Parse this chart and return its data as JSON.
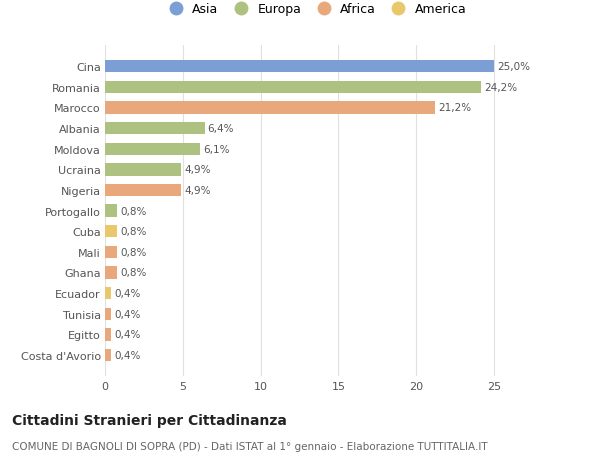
{
  "countries": [
    "Cina",
    "Romania",
    "Marocco",
    "Albania",
    "Moldova",
    "Ucraina",
    "Nigeria",
    "Portogallo",
    "Cuba",
    "Mali",
    "Ghana",
    "Ecuador",
    "Tunisia",
    "Egitto",
    "Costa d'Avorio"
  ],
  "values": [
    25.0,
    24.2,
    21.2,
    6.4,
    6.1,
    4.9,
    4.9,
    0.8,
    0.8,
    0.8,
    0.8,
    0.4,
    0.4,
    0.4,
    0.4
  ],
  "labels": [
    "25,0%",
    "24,2%",
    "21,2%",
    "6,4%",
    "6,1%",
    "4,9%",
    "4,9%",
    "0,8%",
    "0,8%",
    "0,8%",
    "0,8%",
    "0,4%",
    "0,4%",
    "0,4%",
    "0,4%"
  ],
  "continents": [
    "Asia",
    "Europa",
    "Africa",
    "Europa",
    "Europa",
    "Europa",
    "Africa",
    "Europa",
    "America",
    "Africa",
    "Africa",
    "America",
    "Africa",
    "Africa",
    "Africa"
  ],
  "colors": {
    "Asia": "#7b9fd4",
    "Europa": "#adc180",
    "Africa": "#e8a87c",
    "America": "#e8c86a"
  },
  "legend_order": [
    "Asia",
    "Europa",
    "Africa",
    "America"
  ],
  "title": "Cittadini Stranieri per Cittadinanza",
  "subtitle": "COMUNE DI BAGNOLI DI SOPRA (PD) - Dati ISTAT al 1° gennaio - Elaborazione TUTTITALIA.IT",
  "xlim": [
    0,
    27
  ],
  "xticks": [
    0,
    5,
    10,
    15,
    20,
    25
  ],
  "background_color": "#ffffff",
  "grid_color": "#e0e0e0"
}
